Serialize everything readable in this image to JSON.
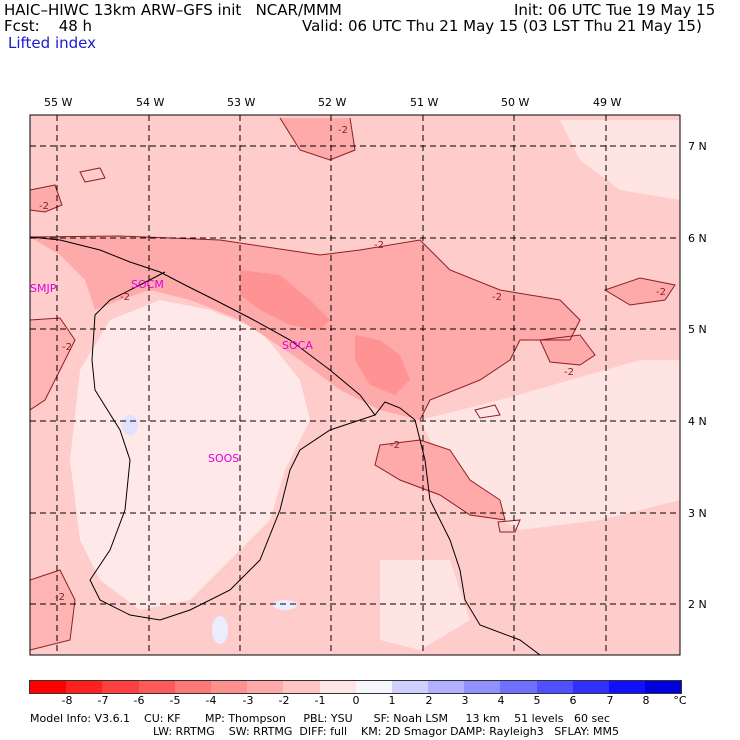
{
  "header": {
    "title": "HAIC–HIWC 13km ARW–GFS init   NCAR/MMM",
    "fcst": "Fcst:    48 h",
    "field": "Lifted index",
    "init": "Init: 06 UTC Tue 19 May 15",
    "valid": "Valid: 06 UTC Thu 21 May 15 (03 LST Thu 21 May 15)"
  },
  "map": {
    "lon_labels": [
      "55 W",
      "54 W",
      "53 W",
      "52 W",
      "51 W",
      "50 W",
      "49 W"
    ],
    "lat_labels": [
      "7 N",
      "6 N",
      "5 N",
      "4 N",
      "3 N",
      "2 N"
    ],
    "stations": [
      "SMJP",
      "SOCM",
      "SOCA",
      "SOOS"
    ],
    "contour_labels": [
      "-2",
      "-2",
      "-2",
      "-2",
      "-2",
      "-2",
      "-2",
      "-2",
      "-2",
      "-2"
    ]
  },
  "colorbar": {
    "unit": "°C",
    "ticks": [
      "-8",
      "-7",
      "-6",
      "-5",
      "-4",
      "-3",
      "-2",
      "-1",
      "0",
      "1",
      "2",
      "3",
      "4",
      "5",
      "6",
      "7",
      "8"
    ],
    "colors": [
      "#ff0000",
      "#ff2020",
      "#ff4040",
      "#ff5a5a",
      "#ff7777",
      "#ff9090",
      "#ffaaaa",
      "#ffc4c4",
      "#ffe6e6",
      "#f6f6ff",
      "#d0d0ff",
      "#b0b0ff",
      "#9090ff",
      "#7070ff",
      "#5050ff",
      "#3030ff",
      "#1010ff",
      "#0000dd"
    ]
  },
  "footer": {
    "line1": "Model Info: V3.6.1    CU: KF       MP: Thompson     PBL: YSU      SF: Noah LSM     13 km    51 levels   60 sec",
    "line2": "LW: RRTMG    SW: RRTMG  DIFF: full    KM: 2D Smagor DAMP: Rayleigh3   SFLAY: MM5"
  }
}
